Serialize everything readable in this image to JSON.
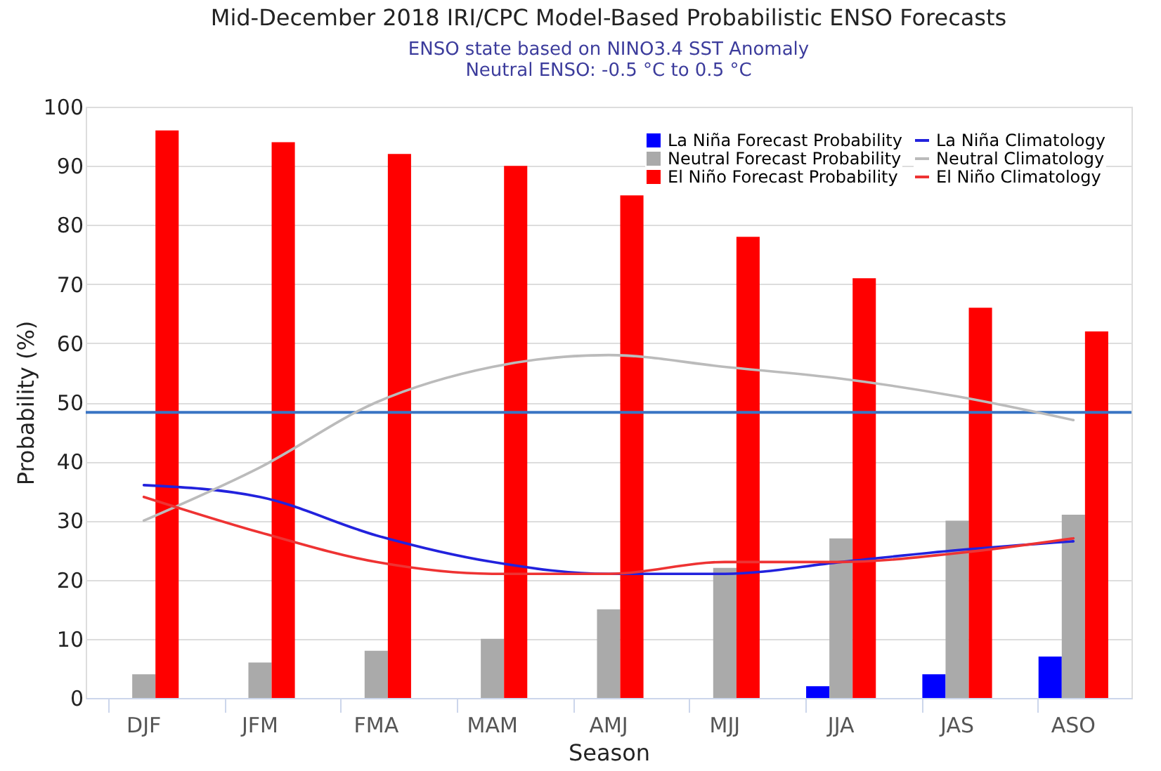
{
  "chart_data": {
    "type": "bar",
    "title": "Mid-December 2018 IRI/CPC Model-Based Probabilistic ENSO Forecasts",
    "subtitle": "ENSO state based on NINO3.4 SST Anomaly\nNeutral ENSO: -0.5 °C to 0.5 °C",
    "xlabel": "Season",
    "ylabel": "Probability (%)",
    "categories": [
      "DJF",
      "JFM",
      "FMA",
      "MAM",
      "AMJ",
      "MJJ",
      "JJA",
      "JAS",
      "ASO"
    ],
    "series": [
      {
        "name": "La Niña Forecast Probability",
        "color": "#0000ff",
        "values": [
          0,
          0,
          0,
          0,
          0,
          0,
          2,
          4,
          7
        ]
      },
      {
        "name": "Neutral Forecast Probability",
        "color": "#aaaaaa",
        "values": [
          4,
          6,
          8,
          10,
          15,
          22,
          27,
          30,
          31
        ]
      },
      {
        "name": "El Niño Forecast Probability",
        "color": "#ff0000",
        "values": [
          96,
          94,
          92,
          90,
          85,
          78,
          71,
          66,
          62
        ]
      },
      {
        "name": "La Niña Climatology",
        "type": "line",
        "color": "#2222dd",
        "values": [
          36,
          34,
          27.5,
          23,
          21,
          21,
          23,
          25,
          26.5
        ]
      },
      {
        "name": "Neutral Climatology",
        "type": "line",
        "color": "#bbbbbb",
        "values": [
          30,
          39,
          50,
          56,
          58,
          56,
          54,
          51,
          47
        ]
      },
      {
        "name": "El Niño Climatology",
        "type": "line",
        "color": "#ee3333",
        "values": [
          34,
          28,
          23,
          21,
          21,
          23,
          23,
          24.5,
          27
        ]
      }
    ],
    "ylim": [
      0,
      100
    ],
    "yticks": [
      0,
      10,
      20,
      30,
      40,
      50,
      60,
      70,
      80,
      90,
      100
    ],
    "ref_lines": [
      {
        "axis": "y",
        "value": 48.3,
        "color": "#3a75c4",
        "line_style": "solid"
      }
    ],
    "grid": "y",
    "legend": "top right",
    "marker": "none",
    "line_style": "solid"
  }
}
